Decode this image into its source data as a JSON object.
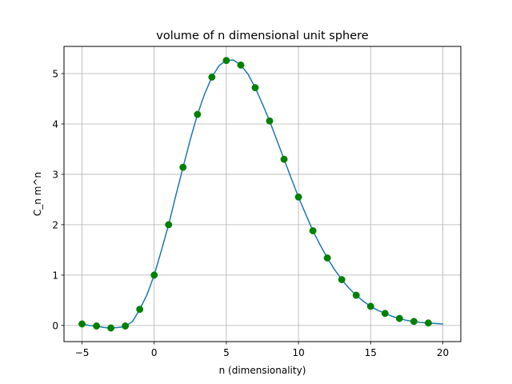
{
  "chart_data": {
    "type": "line",
    "title": "volume of n dimensional unit sphere",
    "xlabel": "n (dimensionality)",
    "ylabel": "C_n m^n",
    "xlim": [
      -6.25,
      21.25
    ],
    "ylim": [
      -0.32,
      5.54
    ],
    "xticks": [
      -5,
      0,
      5,
      10,
      15,
      20
    ],
    "yticks": [
      0,
      1,
      2,
      3,
      4,
      5
    ],
    "xtick_labels": [
      "−5",
      "0",
      "5",
      "10",
      "15",
      "20"
    ],
    "ytick_labels": [
      "0",
      "1",
      "2",
      "3",
      "4",
      "5"
    ],
    "grid": true,
    "series": [
      {
        "kind": "line",
        "color": "#1f77b4",
        "x": [
          -5,
          -4.5,
          -4,
          -3.5,
          -3,
          -2.5,
          -2,
          -1.5,
          -1,
          -0.5,
          0,
          0.5,
          1,
          1.5,
          2,
          2.5,
          3,
          3.5,
          4,
          4.5,
          5,
          5.5,
          6,
          6.5,
          7,
          7.5,
          8,
          8.5,
          9,
          9.5,
          10,
          10.5,
          11,
          11.5,
          12,
          12.5,
          13,
          13.5,
          14,
          14.5,
          15,
          15.5,
          16,
          16.5,
          17,
          17.5,
          18,
          18.5,
          19,
          19.5,
          20
        ],
        "y": [
          0.03,
          0.0,
          -0.01,
          -0.04,
          -0.05,
          -0.04,
          -0.02,
          0.08,
          0.32,
          0.61,
          1.0,
          1.49,
          2.0,
          2.58,
          3.14,
          3.69,
          4.19,
          4.6,
          4.93,
          5.16,
          5.26,
          5.27,
          5.17,
          4.99,
          4.72,
          4.4,
          4.06,
          3.68,
          3.3,
          2.92,
          2.55,
          2.21,
          1.88,
          1.6,
          1.34,
          1.11,
          0.91,
          0.74,
          0.6,
          0.48,
          0.38,
          0.3,
          0.24,
          0.18,
          0.14,
          0.1,
          0.08,
          0.06,
          0.05,
          0.04,
          0.03
        ]
      },
      {
        "kind": "scatter",
        "color": "#008000",
        "x": [
          -5,
          -4,
          -3,
          -2,
          -1,
          0,
          1,
          2,
          3,
          4,
          5,
          6,
          7,
          8,
          9,
          10,
          11,
          12,
          13,
          14,
          15,
          16,
          17,
          18,
          19
        ],
        "y": [
          0.03,
          -0.01,
          -0.05,
          -0.01,
          0.32,
          1.0,
          2.0,
          3.14,
          4.19,
          4.93,
          5.26,
          5.17,
          4.72,
          4.06,
          3.3,
          2.55,
          1.88,
          1.34,
          0.91,
          0.6,
          0.38,
          0.24,
          0.14,
          0.08,
          0.05
        ]
      }
    ]
  }
}
